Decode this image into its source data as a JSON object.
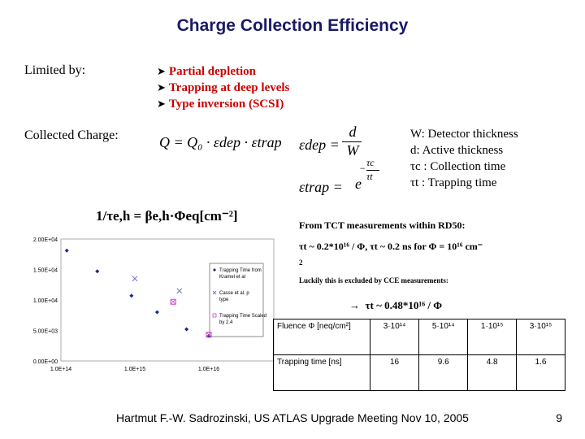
{
  "title": "Charge Collection Efficiency",
  "limited_by": {
    "label": "Limited by:",
    "items": [
      "Partial depletion",
      "Trapping at deep levels",
      "Type inversion (SCSI)"
    ]
  },
  "collected": {
    "label": "Collected Charge:",
    "eq_q": "Q = Q₀ · εdep · εtrap",
    "eq_dep_lhs": "εdep =",
    "eq_dep_num": "d",
    "eq_dep_den": "W",
    "eq_trap_lhs": "εtrap =",
    "eq_trap_base": "e",
    "eq_trap_exp_num": "τc",
    "eq_trap_exp_den": "τt",
    "eq_trap_minus": "−",
    "definitions": [
      "W: Detector thickness",
      "d:  Active thickness",
      "τc : Collection time",
      "τt : Trapping time"
    ]
  },
  "trap_formula": "1/τe,h = βe,h·Φeq[cm⁻²]",
  "tct": {
    "heading": "From TCT measurements within RD50:",
    "line1": "τt ~ 0.2*10¹⁶ / Φ,  τt ~  0.2 ns  for Φ = 10¹⁶ cm⁻",
    "line1_cont": "2",
    "luckily": "Luckily this is excluded by CCE measurements:",
    "arrow": "→",
    "result": "τt ~ 0.48*10¹⁶ / Φ"
  },
  "chart_data": {
    "type": "scatter",
    "x_ticks": [
      "1.0E+14",
      "1.0E+15",
      "1.0E+16"
    ],
    "y_ticks": [
      "2.00E+04",
      "1.50E+04",
      "1.00E+04",
      "5.00E+03",
      "0.00E+00"
    ],
    "xlim": [
      100000000000000.0,
      1e+16
    ],
    "ylim": [
      0,
      20000
    ],
    "x_scale": "log",
    "series": [
      {
        "name": "Trapping Time from Kramel et al",
        "marker": "diamond",
        "color": "#1a2a88",
        "points": [
          [
            120000000000000.0,
            18100
          ],
          [
            310000000000000.0,
            14700
          ],
          [
            900000000000000.0,
            10700
          ],
          [
            2000000000000000.0,
            8000
          ],
          [
            5000000000000000.0,
            5200
          ],
          [
            1e+16,
            4100
          ]
        ]
      },
      {
        "name": "Casse et al. p type",
        "marker": "x",
        "color": "#7777cc",
        "points": [
          [
            1000000000000000.0,
            13500
          ],
          [
            4000000000000000.0,
            11500
          ]
        ]
      },
      {
        "name": "Trapping Time Scaled by 2.4",
        "marker": "square",
        "color": "#cc44cc",
        "points": [
          [
            3300000000000000.0,
            9700
          ],
          [
            1e+16,
            4300
          ]
        ]
      }
    ]
  },
  "table": {
    "header_label": "Fluence Φ [neq/cm²]",
    "fluences": [
      "3·10¹⁴",
      "5·10¹⁴",
      "1·10¹⁵",
      "3·10¹⁵"
    ],
    "row_label": "Trapping time [ns]",
    "times": [
      "16",
      "9.6",
      "4.8",
      "1.6"
    ]
  },
  "footer": "Hartmut F.-W. Sadrozinski, US ATLAS Upgrade Meeting Nov 10,  2005",
  "page_number": "9"
}
